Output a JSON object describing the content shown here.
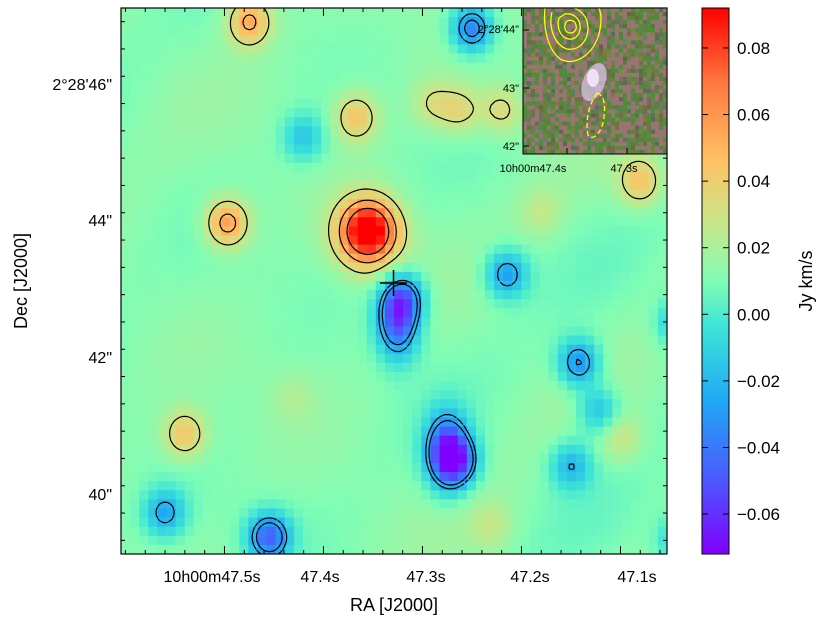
{
  "chart_data": [
    {
      "type": "heatmap",
      "title": "",
      "xlabel": "RA [J2000]",
      "ylabel": "Dec [J2000]",
      "x_tick_labels": [
        "10h00m47.5s",
        "47.4s",
        "47.3s",
        "47.2s",
        "47.1s"
      ],
      "y_tick_labels": [
        "2°28'46\"",
        "44\"",
        "42\"",
        "40\""
      ],
      "colorbar": {
        "label": "Jy km/s",
        "range": [
          -0.072,
          0.092
        ],
        "colormap": "rainbow",
        "ticks": [
          "0.08",
          "0.06",
          "0.04",
          "0.02",
          "0.00",
          "−0.02",
          "−0.04",
          "−0.06"
        ],
        "tick_values": [
          0.08,
          0.06,
          0.04,
          0.02,
          0.0,
          -0.02,
          -0.04,
          -0.06
        ]
      },
      "background_value": 0.012,
      "sources": [
        {
          "ra": 47.355,
          "dec": 43.9,
          "value": 0.092,
          "kind": "peak"
        },
        {
          "ra": 47.355,
          "dec": 44.0,
          "value": 0.03,
          "kind": "extension"
        },
        {
          "ra": 47.497,
          "dec": 44.05,
          "value": 0.06,
          "kind": "peak"
        },
        {
          "ra": 47.275,
          "dec": 40.7,
          "value": -0.06,
          "kind": "trough"
        },
        {
          "ra": 47.263,
          "dec": 40.55,
          "value": -0.03,
          "kind": "trough"
        },
        {
          "ra": 47.325,
          "dec": 42.6,
          "value": -0.05,
          "kind": "trough"
        },
        {
          "ra": 47.318,
          "dec": 42.95,
          "value": -0.025,
          "kind": "trough"
        },
        {
          "ra": 47.455,
          "dec": 39.45,
          "value": -0.045,
          "kind": "trough"
        },
        {
          "ra": 47.25,
          "dec": 46.9,
          "value": -0.04,
          "kind": "trough"
        },
        {
          "ra": 47.475,
          "dec": 47.0,
          "value": 0.055,
          "kind": "peak"
        },
        {
          "ra": 47.54,
          "dec": 40.95,
          "value": 0.045,
          "kind": "peak"
        },
        {
          "ra": 47.367,
          "dec": 45.6,
          "value": 0.045,
          "kind": "peak"
        },
        {
          "ra": 47.262,
          "dec": 45.7,
          "value": 0.035,
          "kind": "peak"
        },
        {
          "ra": 47.29,
          "dec": 45.8,
          "value": 0.03,
          "kind": "peak"
        },
        {
          "ra": 47.22,
          "dec": 45.7,
          "value": 0.035,
          "kind": "peak"
        },
        {
          "ra": 47.08,
          "dec": 44.65,
          "value": 0.045,
          "kind": "peak"
        },
        {
          "ra": 47.142,
          "dec": 42.0,
          "value": -0.035,
          "kind": "trough"
        },
        {
          "ra": 47.215,
          "dec": 43.3,
          "value": -0.03,
          "kind": "trough"
        },
        {
          "ra": 47.04,
          "dec": 42.6,
          "value": -0.025,
          "kind": "trough"
        },
        {
          "ra": 47.122,
          "dec": 41.3,
          "value": -0.02,
          "kind": "trough"
        },
        {
          "ra": 47.15,
          "dec": 40.5,
          "value": -0.02,
          "kind": "trough"
        },
        {
          "ra": 47.04,
          "dec": 39.4,
          "value": -0.02,
          "kind": "trough"
        },
        {
          "ra": 47.56,
          "dec": 39.8,
          "value": -0.025,
          "kind": "trough"
        },
        {
          "ra": 47.42,
          "dec": 45.3,
          "value": -0.015,
          "kind": "trough"
        },
        {
          "ra": 47.18,
          "dec": 44.2,
          "value": 0.025,
          "kind": "peak"
        },
        {
          "ra": 47.43,
          "dec": 41.5,
          "value": 0.02,
          "kind": "peak"
        },
        {
          "ra": 47.1,
          "dec": 40.9,
          "value": 0.03,
          "kind": "peak"
        },
        {
          "ra": 47.23,
          "dec": 39.6,
          "value": 0.025,
          "kind": "peak"
        }
      ],
      "contour_levels": [
        -0.03,
        -0.02,
        0.03,
        0.05,
        0.07
      ],
      "contour_color": "#000000",
      "marker": {
        "symbol": "+",
        "ra": 47.325,
        "dec": 43.1
      }
    },
    {
      "type": "image",
      "role": "inset",
      "x_tick_labels": [
        "10h00m47.4s",
        "47.3s"
      ],
      "y_tick_labels": [
        "2°28'44\"",
        "43\"",
        "42\""
      ],
      "contour_color": "#ffff00",
      "galaxy_color": "#e8d0f0",
      "background_color": "#6b7a4f"
    }
  ]
}
